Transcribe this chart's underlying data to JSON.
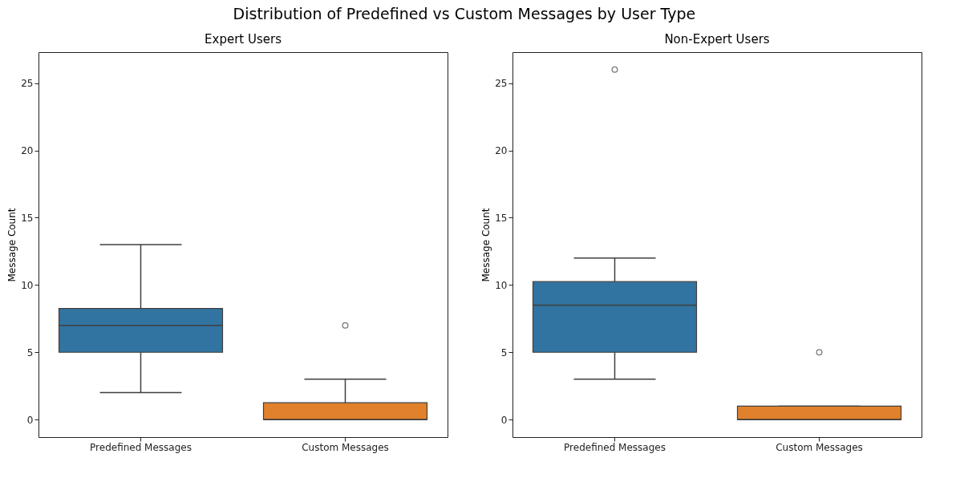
{
  "chart_data": [
    {
      "type": "box",
      "title": "Expert Users",
      "ylabel": "Message Count",
      "annotations": [
        "Distribution of Predefined vs Custom Messages by User Type"
      ],
      "categories": [
        "Predefined Messages",
        "Custom Messages"
      ],
      "colors": [
        "#3274a1",
        "#e1812c"
      ],
      "boxes": [
        {
          "low": 2,
          "q1": 5,
          "median": 7,
          "q3": 8.25,
          "high": 13
        },
        {
          "low": 0,
          "q1": 0,
          "median": 0,
          "q3": 1.25,
          "high": 3,
          "outliers": [
            7
          ]
        }
      ],
      "ylim": [
        -1.3,
        27.3
      ],
      "yticks": [
        0,
        5,
        10,
        15,
        20,
        25
      ],
      "grid": false
    },
    {
      "type": "box",
      "title": "Non-Expert Users",
      "ylabel": "Message Count",
      "categories": [
        "Predefined Messages",
        "Custom Messages"
      ],
      "colors": [
        "#3274a1",
        "#e1812c"
      ],
      "boxes": [
        {
          "low": 3,
          "q1": 5,
          "median": 8.5,
          "q3": 10.25,
          "high": 12,
          "outliers": [
            26
          ]
        },
        {
          "low": 0,
          "q1": 0,
          "median": 0,
          "q3": 1,
          "high": 1,
          "outliers": [
            5
          ]
        }
      ],
      "ylim": [
        -1.3,
        27.3
      ],
      "yticks": [
        0,
        5,
        10,
        15,
        20,
        25
      ],
      "grid": false
    }
  ]
}
